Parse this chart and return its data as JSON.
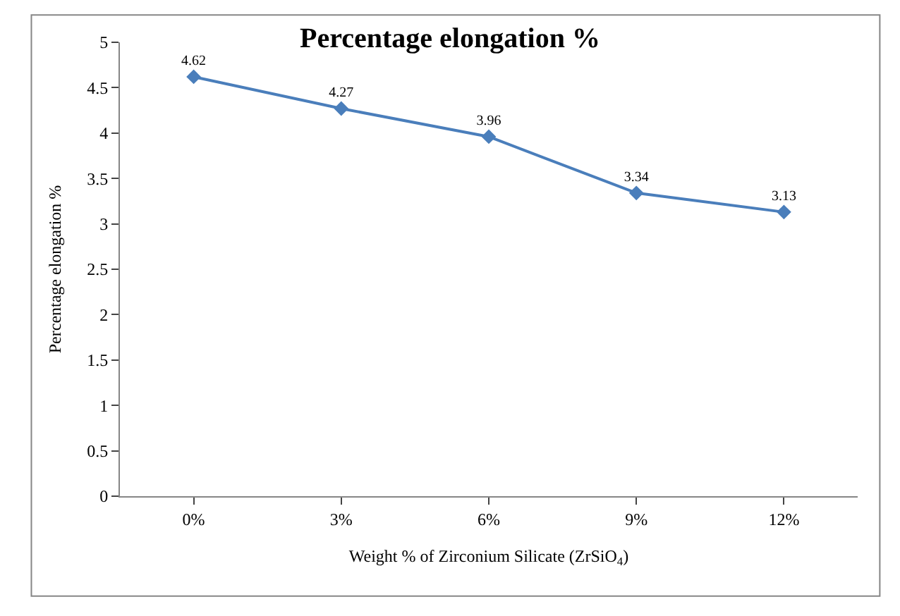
{
  "chart_data": {
    "type": "line",
    "title": "Percentage elongation %",
    "xlabel": "Weight % of Zirconium Silicate (ZrSiO$_{4}$)",
    "ylabel": "Percentage elongation %",
    "categories": [
      "0%",
      "3%",
      "6%",
      "9%",
      "12%"
    ],
    "series": [
      {
        "color": "#4a7ebb",
        "values": [
          4.62,
          4.27,
          3.96,
          3.34,
          3.13
        ]
      }
    ],
    "ylim": [
      0,
      5
    ],
    "yticks": [
      0,
      0.5,
      1,
      1.5,
      2,
      2.5,
      3,
      3.5,
      4,
      4.5,
      5
    ],
    "data_labels": true,
    "marker": "diamond",
    "line_style": "solid"
  }
}
